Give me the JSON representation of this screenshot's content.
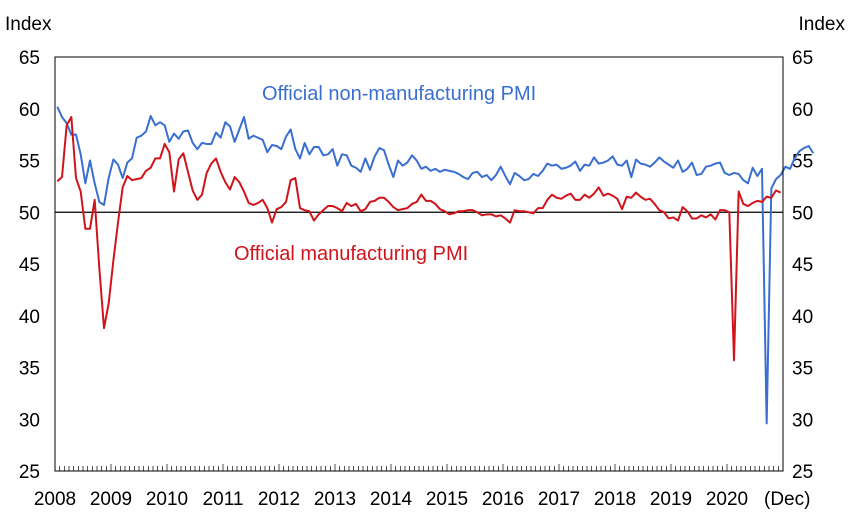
{
  "chart_data": {
    "type": "line",
    "y_axis_title_left": "Index",
    "y_axis_title_right": "Index",
    "ylim": [
      25,
      65
    ],
    "yticks": [
      25,
      30,
      35,
      40,
      45,
      50,
      55,
      60,
      65
    ],
    "x_tick_labels": [
      "2008",
      "2009",
      "2010",
      "2011",
      "2012",
      "2013",
      "2014",
      "2015",
      "2016",
      "2017",
      "2018",
      "2019",
      "2020",
      "(Dec)"
    ],
    "x_range": [
      "2008-01",
      "2020-12"
    ],
    "reference_line": 50,
    "grid": false,
    "series": [
      {
        "name": "Official non-manufacturing PMI",
        "color": "#3a6fd0",
        "start": "2008-01",
        "values": [
          60.2,
          59.2,
          58.6,
          57.5,
          57.5,
          55.6,
          52.8,
          55.0,
          52.8,
          51.0,
          50.7,
          53.3,
          55.1,
          54.6,
          53.3,
          54.8,
          55.2,
          57.2,
          57.4,
          57.8,
          59.3,
          58.4,
          58.7,
          58.4,
          56.8,
          57.6,
          57.1,
          57.8,
          57.9,
          56.7,
          56.1,
          56.7,
          56.6,
          56.6,
          57.7,
          57.2,
          58.7,
          58.3,
          56.8,
          58.0,
          59.2,
          57.1,
          57.4,
          57.2,
          57.0,
          55.8,
          56.5,
          56.4,
          56.1,
          57.3,
          58.0,
          56.1,
          55.2,
          56.7,
          55.6,
          56.3,
          56.3,
          55.5,
          55.6,
          56.1,
          54.5,
          55.6,
          55.5,
          54.5,
          54.3,
          53.9,
          55.2,
          54.1,
          55.4,
          56.2,
          56.0,
          54.6,
          53.4,
          55.0,
          54.5,
          54.8,
          55.5,
          55.0,
          54.2,
          54.4,
          54.0,
          54.2,
          53.9,
          54.1,
          54.0,
          53.9,
          53.7,
          53.4,
          53.2,
          53.8,
          53.9,
          53.4,
          53.6,
          53.1,
          53.6,
          54.4,
          53.5,
          52.7,
          53.8,
          53.5,
          53.1,
          53.2,
          53.7,
          53.5,
          54.0,
          54.7,
          54.5,
          54.6,
          54.2,
          54.3,
          54.5,
          54.9,
          54.0,
          54.6,
          54.5,
          55.3,
          54.7,
          54.8,
          55.0,
          55.4,
          54.6,
          54.5,
          55.0,
          53.4,
          55.1,
          54.7,
          54.6,
          54.4,
          54.8,
          55.3,
          54.9,
          54.6,
          54.3,
          55.0,
          53.9,
          54.2,
          54.8,
          53.6,
          53.7,
          54.4,
          54.5,
          54.7,
          54.8,
          53.8,
          53.6,
          53.8,
          53.7,
          53.1,
          52.8,
          54.3,
          53.5,
          54.2,
          29.6,
          52.3,
          53.2,
          53.6,
          54.4,
          54.2,
          55.2,
          55.9,
          56.2,
          56.4,
          55.7
        ]
      },
      {
        "name": "Official manufacturing PMI",
        "color": "#d0141b",
        "start": "2008-01",
        "values": [
          53.0,
          53.4,
          58.4,
          59.2,
          53.3,
          52.0,
          48.4,
          48.4,
          51.2,
          44.6,
          38.8,
          41.2,
          45.3,
          49.0,
          52.4,
          53.5,
          53.1,
          53.2,
          53.3,
          54.0,
          54.3,
          55.2,
          55.2,
          56.6,
          55.8,
          52.0,
          55.1,
          55.7,
          53.9,
          52.1,
          51.2,
          51.7,
          53.8,
          54.7,
          55.2,
          53.9,
          52.9,
          52.2,
          53.4,
          52.9,
          52.0,
          50.9,
          50.7,
          50.9,
          51.2,
          50.4,
          49.0,
          50.3,
          50.5,
          51.0,
          53.1,
          53.3,
          50.4,
          50.2,
          50.1,
          49.2,
          49.8,
          50.2,
          50.6,
          50.6,
          50.4,
          50.1,
          50.9,
          50.6,
          50.8,
          50.1,
          50.3,
          51.0,
          51.1,
          51.4,
          51.4,
          51.0,
          50.5,
          50.2,
          50.3,
          50.4,
          50.8,
          51.0,
          51.7,
          51.1,
          51.1,
          50.8,
          50.3,
          50.1,
          49.8,
          49.9,
          50.1,
          50.1,
          50.2,
          50.2,
          50.0,
          49.7,
          49.8,
          49.8,
          49.6,
          49.7,
          49.4,
          49.0,
          50.2,
          50.1,
          50.1,
          50.0,
          49.9,
          50.4,
          50.4,
          51.2,
          51.7,
          51.4,
          51.3,
          51.6,
          51.8,
          51.2,
          51.2,
          51.7,
          51.4,
          51.8,
          52.4,
          51.6,
          51.8,
          51.6,
          51.3,
          50.3,
          51.5,
          51.4,
          51.9,
          51.5,
          51.2,
          51.3,
          50.8,
          50.2,
          50.0,
          49.4,
          49.5,
          49.2,
          50.5,
          50.1,
          49.4,
          49.4,
          49.7,
          49.5,
          49.8,
          49.3,
          50.2,
          50.2,
          50.0,
          35.7,
          52.0,
          50.8,
          50.6,
          50.9,
          51.1,
          51.0,
          51.5,
          51.4,
          52.1,
          51.9
        ]
      }
    ]
  }
}
